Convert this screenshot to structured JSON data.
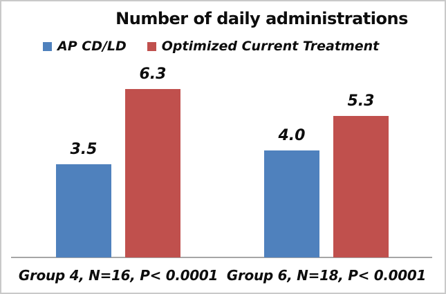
{
  "chart_data": {
    "type": "bar",
    "title": "Number of daily administrations",
    "categories": [
      "Group 4, N=16, P< 0.0001",
      "Group 6, N=18, P< 0.0001"
    ],
    "series": [
      {
        "name": "AP CD/LD",
        "color": "#4F81BD",
        "values": [
          3.5,
          4.0
        ],
        "labels": [
          "3.5",
          "4.0"
        ]
      },
      {
        "name": "Optimized Current Treatment",
        "color": "#C0504D",
        "values": [
          6.3,
          5.3
        ],
        "labels": [
          "6.3",
          "5.3"
        ]
      }
    ],
    "ylim": [
      0,
      7
    ],
    "legend_position": "top",
    "grid": false,
    "colors": {
      "axis_line": "#A6A6A6",
      "text": "#0D0D0D",
      "background": "#FFFFFF",
      "border": "#C9C9C9"
    }
  }
}
